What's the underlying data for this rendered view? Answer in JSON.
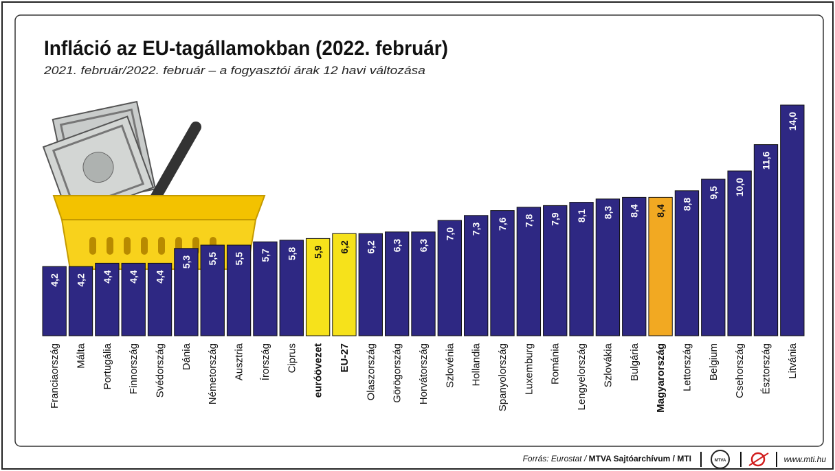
{
  "chart_data": {
    "type": "bar",
    "title": "Infláció az EU-tagállamokban (2022. február)",
    "subtitle": "2021. február/2022. február – a fogyasztói árak 12 havi változása",
    "categories": [
      "Franciaország",
      "Málta",
      "Portugália",
      "Finnország",
      "Svédország",
      "Dánia",
      "Németország",
      "Ausztria",
      "Írország",
      "Ciprus",
      "euróövezet",
      "EU-27",
      "Olaszország",
      "Görögország",
      "Horvátország",
      "Szlovénia",
      "Hollandia",
      "Spanyolország",
      "Luxemburg",
      "Románia",
      "Lengyelország",
      "Szlovákia",
      "Bulgária",
      "Magyarország",
      "Lettország",
      "Belgium",
      "Csehország",
      "Észtország",
      "Litvánia"
    ],
    "values": [
      4.2,
      4.2,
      4.4,
      4.4,
      4.4,
      5.3,
      5.5,
      5.5,
      5.7,
      5.8,
      5.9,
      6.2,
      6.2,
      6.3,
      6.3,
      7.0,
      7.3,
      7.6,
      7.8,
      7.9,
      8.1,
      8.3,
      8.4,
      8.4,
      8.8,
      9.5,
      10.0,
      11.6,
      14.0
    ],
    "value_labels": [
      "4,2",
      "4,2",
      "4,4",
      "4,4",
      "4,4",
      "5,3",
      "5,5",
      "5,5",
      "5,7",
      "5,8",
      "5,9",
      "6,2",
      "6,2",
      "6,3",
      "6,3",
      "7,0",
      "7,3",
      "7,6",
      "7,8",
      "7,9",
      "8,1",
      "8,3",
      "8,4",
      "8,4",
      "8,8",
      "9,5",
      "10,0",
      "11,6",
      "14,0"
    ],
    "color": "#2e2883",
    "colors": [
      "#2e2883",
      "#2e2883",
      "#2e2883",
      "#2e2883",
      "#2e2883",
      "#2e2883",
      "#2e2883",
      "#2e2883",
      "#2e2883",
      "#2e2883",
      "#f6e21b",
      "#f6e21b",
      "#2e2883",
      "#2e2883",
      "#2e2883",
      "#2e2883",
      "#2e2883",
      "#2e2883",
      "#2e2883",
      "#2e2883",
      "#2e2883",
      "#2e2883",
      "#2e2883",
      "#f2a922",
      "#2e2883",
      "#2e2883",
      "#2e2883",
      "#2e2883",
      "#2e2883"
    ],
    "source": "Forrás: Eurostat /",
    "source_bold": "MTVA Sajtóarchívum / MTI",
    "logo_text": "MTVA",
    "url": "www.mti.hu"
  }
}
